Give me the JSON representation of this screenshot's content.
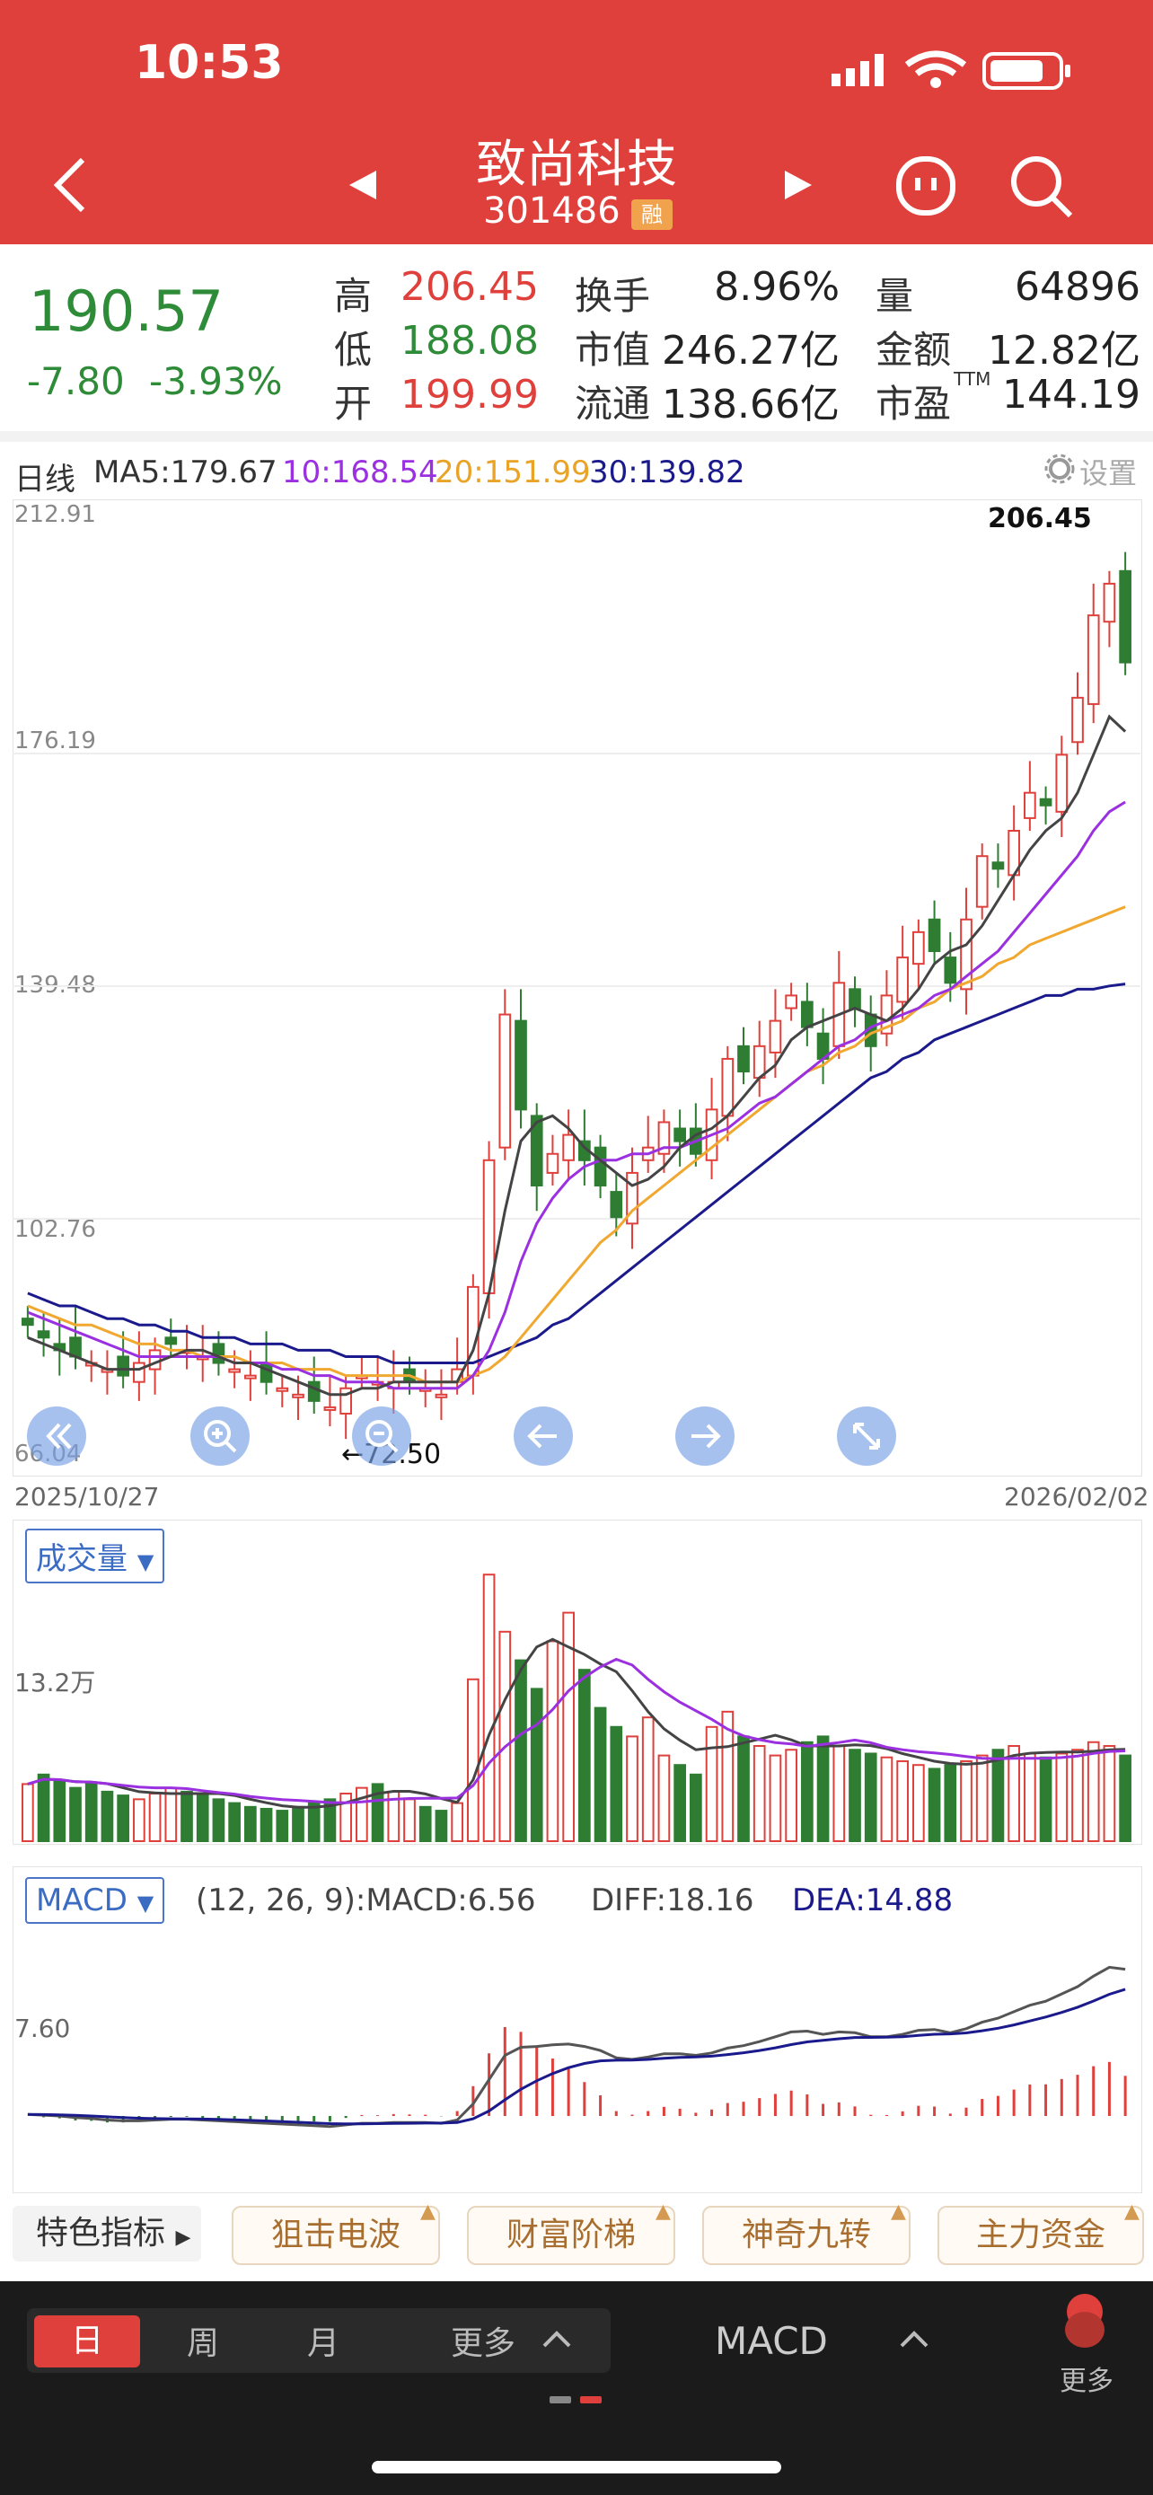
{
  "status": {
    "time": "10:53"
  },
  "header": {
    "title": "致尚科技",
    "code": "301486",
    "badge": "融"
  },
  "quote": {
    "price": "190.57",
    "change": "-7.80",
    "change_pct": "-3.93%",
    "rows": [
      [
        {
          "label": "高",
          "value": "206.45"
        },
        {
          "label": "换手",
          "value": "8.96%"
        },
        {
          "label": "量",
          "value": "64896"
        }
      ],
      [
        {
          "label": "低",
          "value": "188.08"
        },
        {
          "label": "市值",
          "value": "246.27亿"
        },
        {
          "label": "金额",
          "value": "12.82亿"
        }
      ],
      [
        {
          "label": "开",
          "value": "199.99"
        },
        {
          "label": "流通",
          "value": "138.66亿"
        },
        {
          "label": "市盈",
          "value": "144.19"
        }
      ]
    ],
    "ttm": "TTM"
  },
  "ma_line": {
    "period": "日线",
    "ma5": "MA5:179.67",
    "ma10": "10:168.54",
    "ma20": "20:151.99",
    "ma30": "30:139.82",
    "settings": "设置"
  },
  "colors": {
    "up": "#e0403b",
    "down": "#2e7d32",
    "ma5": "#444444",
    "ma10": "#9b30e0",
    "ma20": "#f0a830",
    "ma30": "#1a1a8c",
    "accent": "#e0403b"
  },
  "kline": {
    "axis": [
      "212.91",
      "176.19",
      "139.48",
      "102.76",
      "66.04"
    ],
    "date_start": "2025/10/27",
    "date_end": "2026/02/02",
    "high_label": "206.45",
    "low_label": "72.50"
  },
  "volume": {
    "button": "成交量",
    "axis": "13.2万"
  },
  "macd": {
    "button": "MACD",
    "params": "(12, 26, 9):MACD:6.56",
    "diff": "DIFF:18.16",
    "dea": "DEA:14.88",
    "axis": "7.60"
  },
  "features": {
    "label": "特色指标",
    "items": [
      "狙击电波",
      "财富阶梯",
      "神奇九转",
      "主力资金"
    ]
  },
  "bottom": {
    "tabs": [
      "日",
      "周",
      "月",
      "更多"
    ],
    "indicator": "MACD",
    "more": "更多"
  },
  "chart_data": {
    "type": "candlestick",
    "y_range": [
      66.04,
      212.91
    ],
    "closes": [
      86,
      84,
      82,
      81,
      80,
      79,
      78,
      80,
      82,
      83,
      82,
      81,
      80,
      79,
      78,
      77,
      76,
      75,
      74,
      73,
      76,
      78,
      77,
      77,
      77,
      76,
      75,
      79,
      92,
      112,
      135,
      120,
      108,
      113,
      116,
      112,
      108,
      103,
      110,
      114,
      118,
      115,
      113,
      120,
      128,
      126,
      130,
      134,
      138,
      133,
      128,
      140,
      136,
      130,
      138,
      144,
      148,
      145,
      140,
      150,
      160,
      158,
      164,
      170,
      168,
      176,
      185,
      198,
      203,
      190.57
    ],
    "ma5": [
      84,
      83,
      82,
      81,
      80,
      79,
      79,
      79,
      80,
      81,
      82,
      82,
      81,
      80,
      80,
      79,
      78,
      77,
      76,
      75,
      75,
      76,
      76,
      77,
      77,
      77,
      77,
      77,
      82,
      91,
      104,
      115,
      118,
      119,
      117,
      114,
      112,
      110,
      108,
      109,
      111,
      114,
      116,
      117,
      119,
      122,
      125,
      127,
      131,
      133,
      134,
      135,
      136,
      135,
      134,
      136,
      139,
      143,
      145,
      146,
      149,
      153,
      157,
      161,
      164,
      166,
      170,
      176,
      182,
      179.67
    ],
    "ma10": [
      88,
      87,
      86,
      85,
      84,
      83,
      82,
      81,
      81,
      81,
      81,
      81,
      81,
      80,
      80,
      80,
      79,
      79,
      78,
      78,
      77,
      77,
      77,
      76,
      76,
      76,
      76,
      76,
      78,
      82,
      88,
      96,
      102,
      106,
      109,
      111,
      112,
      112,
      113,
      113,
      114,
      114,
      115,
      116,
      117,
      119,
      121,
      122,
      124,
      126,
      128,
      130,
      131,
      133,
      134,
      135,
      136,
      138,
      139,
      141,
      143,
      145,
      148,
      151,
      154,
      157,
      160,
      164,
      167,
      168.54
    ],
    "ma20": [
      89,
      88,
      87,
      86,
      86,
      85,
      84,
      83,
      83,
      82,
      82,
      81,
      81,
      81,
      80,
      80,
      80,
      79,
      79,
      79,
      78,
      78,
      78,
      78,
      78,
      77,
      77,
      77,
      78,
      79,
      81,
      84,
      87,
      90,
      93,
      96,
      99,
      101,
      104,
      106,
      108,
      110,
      112,
      114,
      116,
      118,
      120,
      122,
      124,
      126,
      127,
      129,
      130,
      132,
      133,
      134,
      136,
      137,
      139,
      140,
      141,
      143,
      144,
      146,
      147,
      148,
      149,
      150,
      151,
      151.99
    ],
    "ma30": [
      91,
      90,
      89,
      89,
      88,
      87,
      87,
      86,
      86,
      85,
      85,
      84,
      84,
      84,
      83,
      83,
      83,
      82,
      82,
      82,
      81,
      81,
      81,
      80,
      80,
      80,
      80,
      80,
      80,
      81,
      82,
      83,
      84,
      86,
      87,
      89,
      91,
      93,
      95,
      97,
      99,
      101,
      103,
      105,
      107,
      109,
      111,
      113,
      115,
      117,
      119,
      121,
      123,
      125,
      126,
      128,
      129,
      131,
      132,
      133,
      134,
      135,
      136,
      137,
      138,
      138,
      139,
      139,
      139.5,
      139.82
    ],
    "volume": [
      30,
      35,
      32,
      28,
      30,
      26,
      24,
      22,
      25,
      28,
      26,
      24,
      22,
      20,
      18,
      17,
      16,
      18,
      20,
      22,
      25,
      28,
      30,
      26,
      22,
      18,
      16,
      20,
      85,
      140,
      110,
      95,
      80,
      105,
      120,
      90,
      70,
      60,
      55,
      65,
      45,
      40,
      35,
      60,
      68,
      55,
      50,
      45,
      48,
      52,
      55,
      50,
      48,
      46,
      44,
      42,
      40,
      38,
      40,
      42,
      45,
      48,
      50,
      46,
      44,
      46,
      48,
      52,
      50,
      45
    ],
    "macd_dif": [
      0.2,
      0.1,
      0,
      -0.2,
      -0.3,
      -0.5,
      -0.6,
      -0.6,
      -0.5,
      -0.4,
      -0.4,
      -0.5,
      -0.6,
      -0.7,
      -0.8,
      -0.9,
      -1,
      -1.1,
      -1.2,
      -1.3,
      -1.1,
      -0.9,
      -0.9,
      -0.8,
      -0.8,
      -0.8,
      -0.9,
      -0.5,
      1.5,
      4.5,
      7.5,
      8.5,
      8.6,
      8.8,
      8.9,
      8.6,
      8.1,
      7.2,
      7.0,
      7.3,
      7.7,
      7.7,
      7.5,
      7.8,
      8.4,
      8.7,
      9.2,
      9.8,
      10.4,
      10.5,
      10.1,
      10.4,
      10.3,
      9.8,
      9.8,
      10.1,
      10.6,
      10.7,
      10.3,
      10.8,
      11.6,
      12.1,
      12.9,
      13.7,
      14.2,
      15.1,
      16.0,
      17.3,
      18.4,
      18.16
    ]
  }
}
